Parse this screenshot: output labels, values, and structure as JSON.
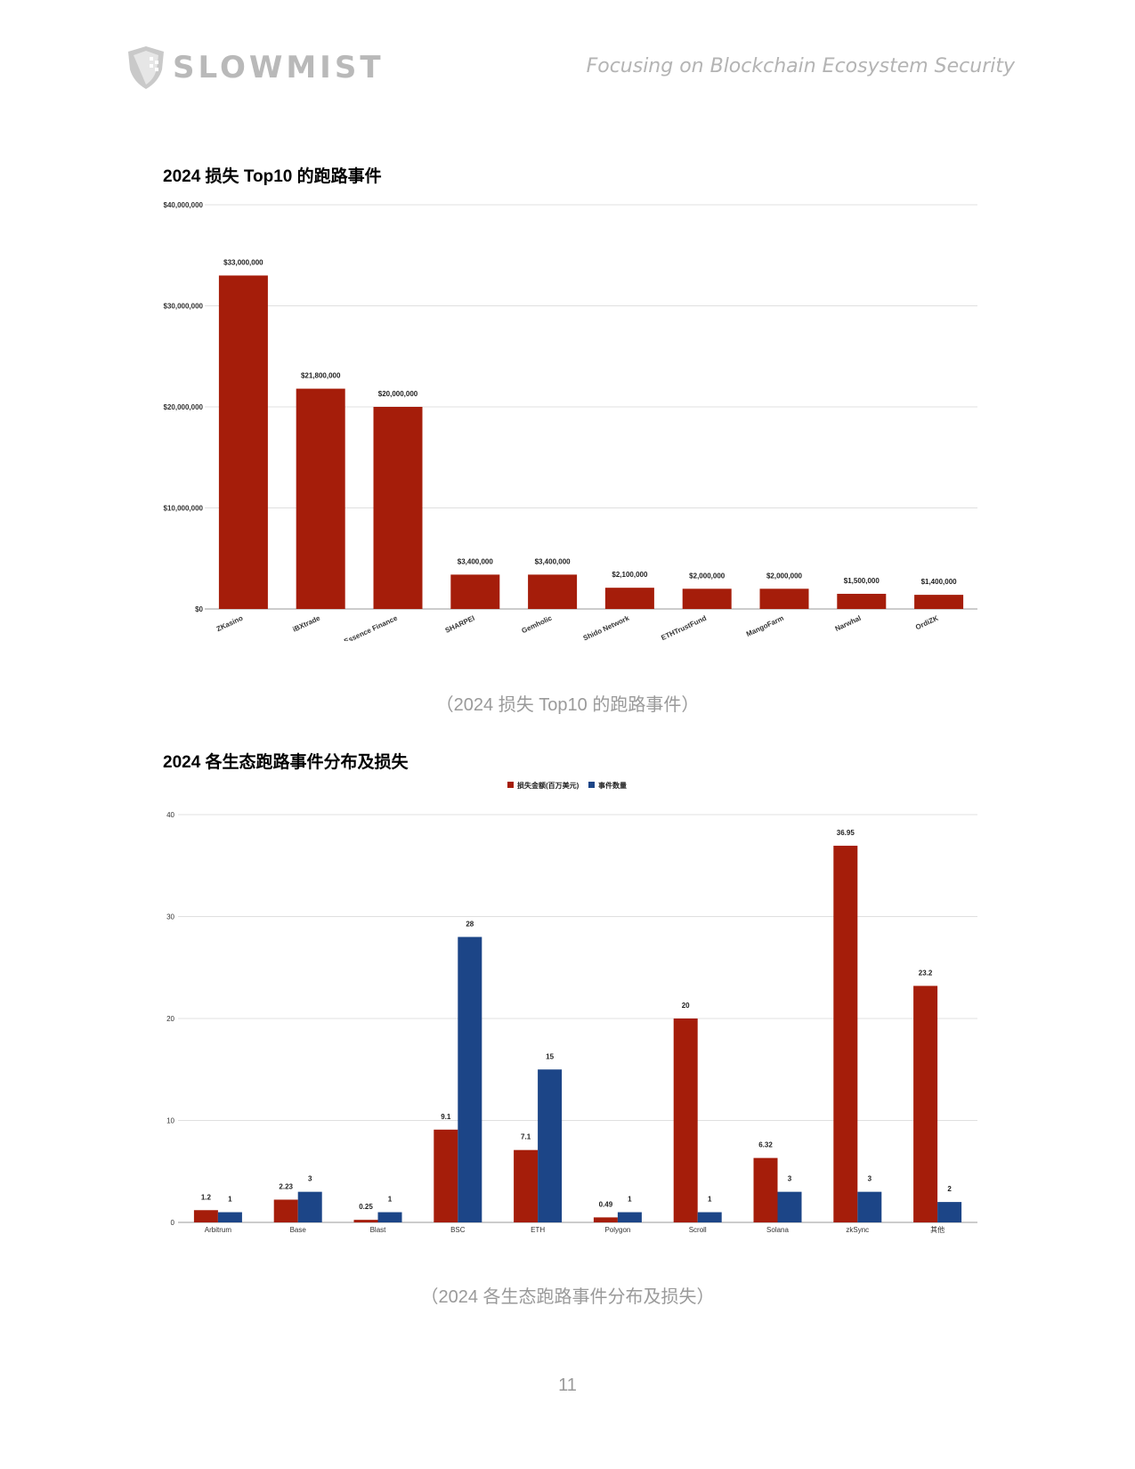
{
  "header": {
    "logo_text": "SLOWMIST",
    "tagline": "Focusing on Blockchain Ecosystem Security"
  },
  "chart1": {
    "title": "2024 损失 Top10 的跑路事件",
    "caption": "（2024 损失 Top10 的跑路事件）"
  },
  "chart2": {
    "title": "2024 各生态跑路事件分布及损失",
    "caption": "（2024 各生态跑路事件分布及损失）"
  },
  "page_number": "11",
  "colors": {
    "red": "#a51d0a",
    "blue": "#1c4587",
    "grid": "#e0e0e0",
    "axis": "#999999"
  },
  "chart_data": [
    {
      "type": "bar",
      "title": "2024 损失 Top10 的跑路事件",
      "categories": [
        "ZKasino",
        "iBXtrade",
        "Essence Finance",
        "SHARPEI",
        "Gemholic",
        "Shido Network",
        "ETHTrustFund",
        "MangoFarm",
        "Narwhal",
        "OrdiZK"
      ],
      "values": [
        33000000,
        21800000,
        20000000,
        3400000,
        3400000,
        2100000,
        2000000,
        2000000,
        1500000,
        1400000
      ],
      "value_labels": [
        "$33,000,000",
        "$21,800,000",
        "$20,000,000",
        "$3,400,000",
        "$3,400,000",
        "$2,100,000",
        "$2,000,000",
        "$2,000,000",
        "$1,500,000",
        "$1,400,000"
      ],
      "yticks": [
        0,
        10000000,
        20000000,
        30000000,
        40000000
      ],
      "ytick_labels": [
        "$0",
        "$10,000,000",
        "$20,000,000",
        "$30,000,000",
        "$40,000,000"
      ],
      "ylim": [
        0,
        40000000
      ],
      "xlabel": "",
      "ylabel": "",
      "grid": true,
      "color": "#a51d0a"
    },
    {
      "type": "bar",
      "title": "2024 各生态跑路事件分布及损失",
      "categories": [
        "Arbitrum",
        "Base",
        "Blast",
        "BSC",
        "ETH",
        "Polygon",
        "Scroll",
        "Solana",
        "zkSync",
        "其他"
      ],
      "series": [
        {
          "name": "损失金额(百万美元)",
          "color": "#a51d0a",
          "values": [
            1.2,
            2.23,
            0.25,
            9.1,
            7.1,
            0.49,
            20,
            6.32,
            36.95,
            23.2
          ],
          "labels": [
            "1.2",
            "2.23",
            "0.25",
            "9.1",
            "7.1",
            "0.49",
            "20",
            "6.32",
            "36.95",
            "23.2"
          ]
        },
        {
          "name": "事件数量",
          "color": "#1c4587",
          "values": [
            1,
            3,
            1,
            28,
            15,
            1,
            1,
            3,
            3,
            2
          ],
          "labels": [
            "1",
            "3",
            "1",
            "28",
            "15",
            "1",
            "1",
            "3",
            "3",
            "2"
          ]
        }
      ],
      "yticks": [
        0,
        10,
        20,
        30,
        40
      ],
      "ytick_labels": [
        "0",
        "10",
        "20",
        "30",
        "40"
      ],
      "ylim": [
        0,
        40
      ],
      "legend": "top-center",
      "xlabel": "",
      "ylabel": "",
      "grid": true
    }
  ]
}
